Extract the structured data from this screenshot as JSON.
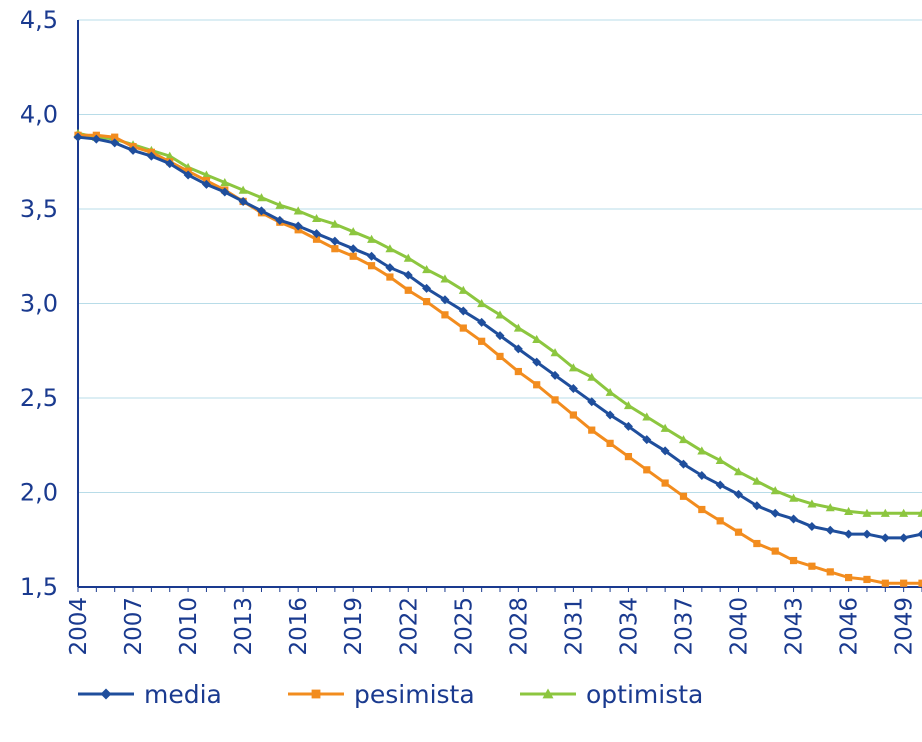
{
  "chart_data": {
    "type": "line",
    "title": "",
    "xlabel": "",
    "ylabel": "",
    "x": [
      2004,
      2005,
      2006,
      2007,
      2008,
      2009,
      2010,
      2011,
      2012,
      2013,
      2014,
      2015,
      2016,
      2017,
      2018,
      2019,
      2020,
      2021,
      2022,
      2023,
      2024,
      2025,
      2026,
      2027,
      2028,
      2029,
      2030,
      2031,
      2032,
      2033,
      2034,
      2035,
      2036,
      2037,
      2038,
      2039,
      2040,
      2041,
      2042,
      2043,
      2044,
      2045,
      2046,
      2047,
      2048,
      2049,
      2050
    ],
    "xticks": [
      "2004",
      "2007",
      "2010",
      "2013",
      "2016",
      "2019",
      "2022",
      "2025",
      "2028",
      "2031",
      "2034",
      "2037",
      "2040",
      "2043",
      "2046",
      "2049"
    ],
    "xlim": [
      2004,
      2050
    ],
    "ylim": [
      1.5,
      4.5
    ],
    "yticks": [
      "1,5",
      "2,0",
      "2,5",
      "3,0",
      "3,5",
      "4,0",
      "4,5"
    ],
    "ytick_values": [
      1.5,
      2.0,
      2.5,
      3.0,
      3.5,
      4.0,
      4.5
    ],
    "grid": true,
    "legend_position": "bottom",
    "series": [
      {
        "name": "media",
        "color": "#1f4e9c",
        "marker": "diamond",
        "values": [
          3.88,
          3.87,
          3.85,
          3.81,
          3.78,
          3.74,
          3.68,
          3.63,
          3.59,
          3.54,
          3.49,
          3.44,
          3.41,
          3.37,
          3.33,
          3.29,
          3.25,
          3.19,
          3.15,
          3.08,
          3.02,
          2.96,
          2.9,
          2.83,
          2.76,
          2.69,
          2.62,
          2.55,
          2.48,
          2.41,
          2.35,
          2.28,
          2.22,
          2.15,
          2.09,
          2.04,
          1.99,
          1.93,
          1.89,
          1.86,
          1.82,
          1.8,
          1.78,
          1.78,
          1.76,
          1.76,
          1.78
        ]
      },
      {
        "name": "pesimista",
        "color": "#f28c1e",
        "marker": "square",
        "values": [
          3.89,
          3.89,
          3.88,
          3.83,
          3.8,
          3.75,
          3.7,
          3.65,
          3.6,
          3.54,
          3.48,
          3.43,
          3.39,
          3.34,
          3.29,
          3.25,
          3.2,
          3.14,
          3.07,
          3.01,
          2.94,
          2.87,
          2.8,
          2.72,
          2.64,
          2.57,
          2.49,
          2.41,
          2.33,
          2.26,
          2.19,
          2.12,
          2.05,
          1.98,
          1.91,
          1.85,
          1.79,
          1.73,
          1.69,
          1.64,
          1.61,
          1.58,
          1.55,
          1.54,
          1.52,
          1.52,
          1.52
        ]
      },
      {
        "name": "optimista",
        "color": "#8cc63f",
        "marker": "triangle",
        "values": [
          3.9,
          3.88,
          3.87,
          3.84,
          3.81,
          3.78,
          3.72,
          3.68,
          3.64,
          3.6,
          3.56,
          3.52,
          3.49,
          3.45,
          3.42,
          3.38,
          3.34,
          3.29,
          3.24,
          3.18,
          3.13,
          3.07,
          3.0,
          2.94,
          2.87,
          2.81,
          2.74,
          2.66,
          2.61,
          2.53,
          2.46,
          2.4,
          2.34,
          2.28,
          2.22,
          2.17,
          2.11,
          2.06,
          2.01,
          1.97,
          1.94,
          1.92,
          1.9,
          1.89,
          1.89,
          1.89,
          1.89
        ]
      }
    ]
  }
}
